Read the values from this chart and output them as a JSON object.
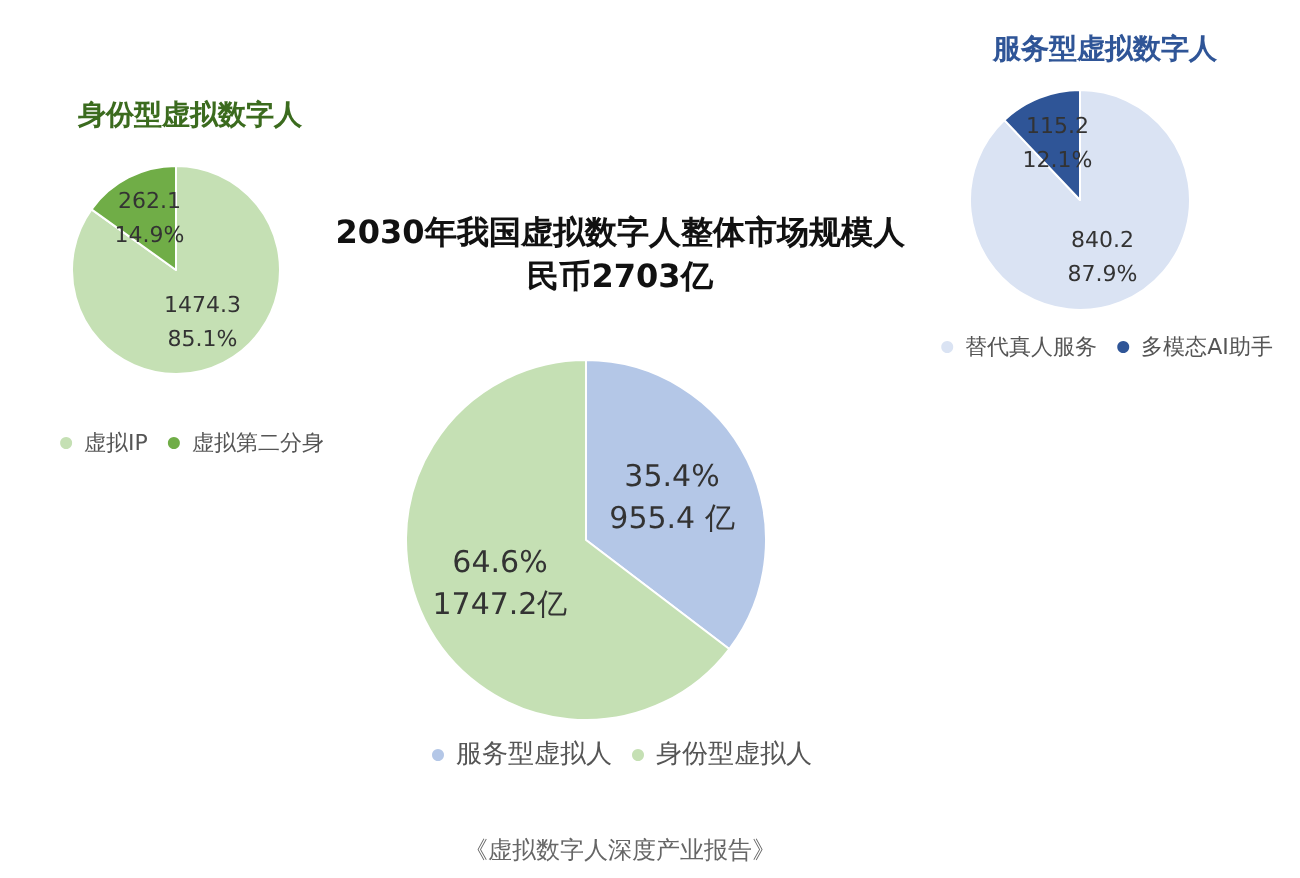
{
  "chart_data": [
    {
      "type": "pie",
      "title": "2030年我国虚拟数字人整体市场规模人民币2703亿",
      "categories": [
        "服务型虚拟人",
        "身份型虚拟人"
      ],
      "values": [
        955.4,
        1747.2
      ],
      "colors": [
        "#b4c7e7",
        "#c5e0b4"
      ],
      "value_labels": [
        "35.4%\n955.4 亿",
        "64.6%\n1747.2亿"
      ],
      "legend": "bottom",
      "annotations": [
        "《虚拟数字人深度产业报告》"
      ]
    },
    {
      "type": "pie",
      "title": "身份型虚拟数字人",
      "categories": [
        "虚拟IP",
        "虚拟第二分身"
      ],
      "values": [
        1474.3,
        262.1
      ],
      "colors": [
        "#c5e0b4",
        "#70ad47"
      ],
      "value_labels": [
        "1474.3\n85.1%",
        "262.1\n14.9%"
      ],
      "legend": "bottom"
    },
    {
      "type": "pie",
      "title": "服务型虚拟数字人",
      "categories": [
        "替代真人服务",
        "多模态AI助手"
      ],
      "values": [
        840.2,
        115.2
      ],
      "colors": [
        "#dae3f3",
        "#2f5597"
      ],
      "value_labels": [
        "840.2\n87.9%",
        "115.2\n12.1%"
      ],
      "legend": "bottom"
    }
  ]
}
